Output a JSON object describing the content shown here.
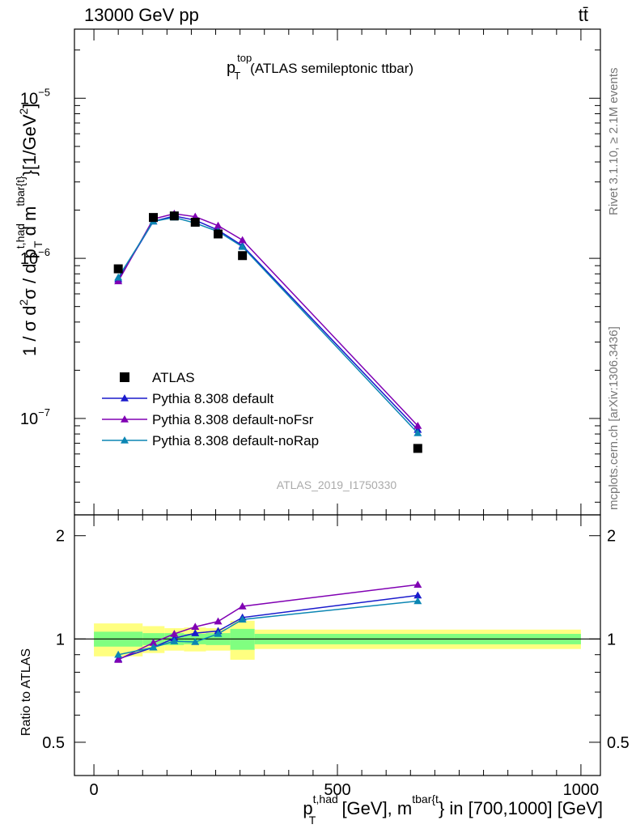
{
  "header": {
    "left": "13000 GeV pp",
    "right": "tt̄"
  },
  "plot_title": {
    "main": "p",
    "sup": "top",
    "sub": "T",
    "rest": "(ATLAS semileptonic ttbar)"
  },
  "side_labels": {
    "rivet": "Rivet 3.1.10, ≥ 2.1M events",
    "mcplots": "mcplots.cern.ch [arXiv:1306.3436]"
  },
  "watermark": "ATLAS_2019_I1750330",
  "upper_ylabel": {
    "p1": "1 / σ d",
    "s1": "2",
    "p2": "σ / d p",
    "s2": "t,had",
    "u2": "T",
    "p3": " d m",
    "s3": "tbar{t}",
    "p4": "}[1/GeV",
    "s4": "2",
    "p5": "]"
  },
  "lower_ylabel": "Ratio to ATLAS",
  "xlabel": {
    "p1": "p",
    "s1": "t,had",
    "u1": "T",
    "p2": " [GeV], m",
    "s2": "tbar{t",
    "p3": "} in [700,1000] [GeV]"
  },
  "upper_ticks": {
    "y": [
      {
        "value": 1e-07,
        "base": "10",
        "exp": "−7"
      },
      {
        "value": 1e-06,
        "base": "10",
        "exp": "−6"
      },
      {
        "value": 1e-05,
        "base": "10",
        "exp": "−5"
      }
    ]
  },
  "lower_ticks": {
    "y": [
      {
        "value": 0.5,
        "label": "0.5"
      },
      {
        "value": 1,
        "label": "1"
      },
      {
        "value": 2,
        "label": "2"
      }
    ]
  },
  "x_ticks": [
    {
      "value": 0,
      "label": "0"
    },
    {
      "value": 500,
      "label": "500"
    },
    {
      "value": 1000,
      "label": "1000"
    }
  ],
  "legend": {
    "placement": "lower-left",
    "entries": [
      {
        "label": "ATLAS",
        "marker": "square",
        "color": "#000000"
      },
      {
        "label": "Pythia 8.308 default",
        "marker": "triangle",
        "color": "#1a1acc"
      },
      {
        "label": "Pythia 8.308 default-noFsr",
        "marker": "triangle",
        "color": "#8000b3"
      },
      {
        "label": "Pythia 8.308 default-noRap",
        "marker": "triangle",
        "color": "#0b86b3"
      }
    ]
  },
  "chart_data": {
    "type": "line",
    "xlim": [
      -40,
      1040
    ],
    "ylim_upper": [
      2.5e-08,
      2.7e-05
    ],
    "yscale_upper": "log",
    "ylim_lower": [
      0.4,
      2.3
    ],
    "yscale_lower": "log",
    "x": [
      50,
      122,
      165,
      208,
      255,
      305,
      665
    ],
    "bins": [
      [
        0,
        100
      ],
      [
        100,
        145
      ],
      [
        145,
        185
      ],
      [
        185,
        230
      ],
      [
        230,
        280
      ],
      [
        280,
        330
      ],
      [
        330,
        1000
      ]
    ],
    "data": [
      8.6e-07,
      1.8e-06,
      1.84e-06,
      1.68e-06,
      1.42e-06,
      1.04e-06,
      6.5e-08
    ],
    "band_stat": [
      0.05,
      0.04,
      0.04,
      0.035,
      0.04,
      0.07,
      0.035
    ],
    "band_total": [
      0.11,
      0.09,
      0.075,
      0.08,
      0.075,
      0.13,
      0.065
    ],
    "series": [
      {
        "name": "Pythia 8.308 default",
        "color": "#1a1acc",
        "values": [
          7.4e-07,
          1.7e-06,
          1.84e-06,
          1.73e-06,
          1.5e-06,
          1.2e-06,
          8.5e-08
        ],
        "ratio": [
          0.875,
          0.945,
          1.005,
          1.04,
          1.055,
          1.155,
          1.34
        ]
      },
      {
        "name": "Pythia 8.308 default-noFsr",
        "color": "#8000b3",
        "values": [
          7.2e-07,
          1.76e-06,
          1.9e-06,
          1.82e-06,
          1.6e-06,
          1.3e-06,
          9e-08
        ],
        "ratio": [
          0.87,
          0.975,
          1.035,
          1.085,
          1.125,
          1.245,
          1.44
        ]
      },
      {
        "name": "Pythia 8.308 default-noRap",
        "color": "#0b86b3",
        "values": [
          7.6e-07,
          1.7e-06,
          1.8e-06,
          1.66e-06,
          1.47e-06,
          1.18e-06,
          8.1e-08
        ],
        "ratio": [
          0.9,
          0.945,
          0.985,
          0.98,
          1.035,
          1.14,
          1.29
        ]
      }
    ]
  }
}
